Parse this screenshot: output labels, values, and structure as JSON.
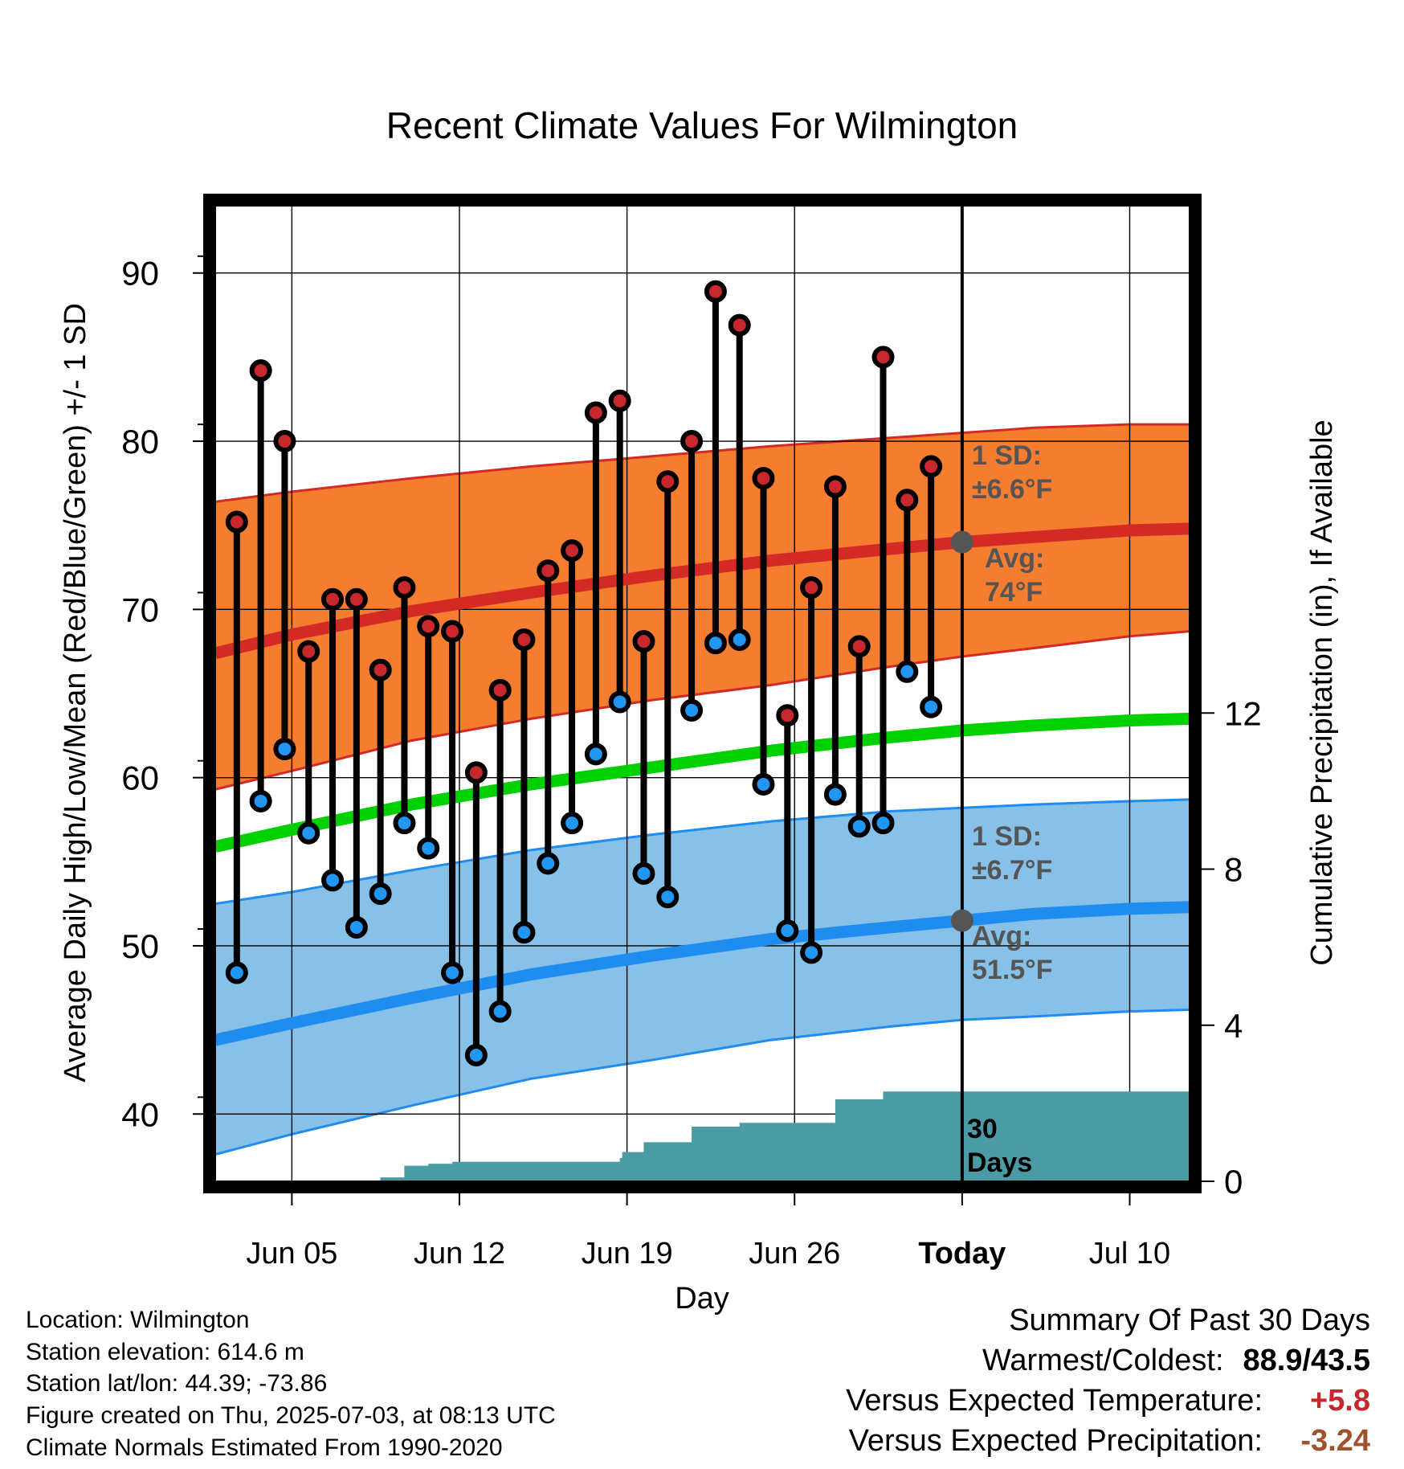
{
  "chart_data": {
    "type": "line",
    "title": "Recent Climate Values For Wilmington",
    "xlabel": "Day",
    "ylabel_left": "Average Daily High/Low/Mean (Red/Blue/Green) +/- 1 SD",
    "ylabel_right": "Cumulative Precipitation (in), If Available",
    "x_ticks": [
      {
        "label": "Jun 05",
        "day": 5
      },
      {
        "label": "Jun 12",
        "day": 12
      },
      {
        "label": "Jun 19",
        "day": 19
      },
      {
        "label": "Jun 26",
        "day": 26
      },
      {
        "label": "Today",
        "day": 33
      },
      {
        "label": "Jul 10",
        "day": 40
      }
    ],
    "xlim": [
      1.8,
      42.5
    ],
    "ylim_left": [
      36,
      94
    ],
    "y_ticks_left": [
      40,
      50,
      60,
      70,
      80,
      90
    ],
    "ylim_right": [
      0,
      25
    ],
    "y_ticks_right": [
      0,
      4,
      8,
      12
    ],
    "today_day": 33,
    "daily": [
      {
        "day": 2.7,
        "high": 75.2,
        "low": 48.4
      },
      {
        "day": 3.7,
        "high": 84.2,
        "low": 58.6
      },
      {
        "day": 4.7,
        "high": 80.0,
        "low": 61.7
      },
      {
        "day": 5.7,
        "high": 67.5,
        "low": 56.7
      },
      {
        "day": 6.7,
        "high": 70.6,
        "low": 53.9
      },
      {
        "day": 7.7,
        "high": 70.6,
        "low": 51.1
      },
      {
        "day": 8.7,
        "high": 66.4,
        "low": 53.1
      },
      {
        "day": 9.7,
        "high": 71.3,
        "low": 57.3
      },
      {
        "day": 10.7,
        "high": 69.0,
        "low": 55.8
      },
      {
        "day": 11.7,
        "high": 68.7,
        "low": 48.4
      },
      {
        "day": 12.7,
        "high": 60.3,
        "low": 43.5
      },
      {
        "day": 13.7,
        "high": 65.2,
        "low": 46.1
      },
      {
        "day": 14.7,
        "high": 68.2,
        "low": 50.8
      },
      {
        "day": 15.7,
        "high": 72.3,
        "low": 54.9
      },
      {
        "day": 16.7,
        "high": 73.5,
        "low": 57.3
      },
      {
        "day": 17.7,
        "high": 81.7,
        "low": 61.4
      },
      {
        "day": 18.7,
        "high": 82.4,
        "low": 64.5
      },
      {
        "day": 19.7,
        "high": 68.1,
        "low": 54.3
      },
      {
        "day": 20.7,
        "high": 77.6,
        "low": 52.9
      },
      {
        "day": 21.7,
        "high": 80.0,
        "low": 64.0
      },
      {
        "day": 22.7,
        "high": 88.9,
        "low": 68.0
      },
      {
        "day": 23.7,
        "high": 86.9,
        "low": 68.2
      },
      {
        "day": 24.7,
        "high": 77.8,
        "low": 59.6
      },
      {
        "day": 25.7,
        "high": 63.7,
        "low": 50.9
      },
      {
        "day": 26.7,
        "high": 71.3,
        "low": 49.6
      },
      {
        "day": 27.7,
        "high": 77.3,
        "low": 59.0
      },
      {
        "day": 28.7,
        "high": 67.8,
        "low": 57.1
      },
      {
        "day": 29.7,
        "high": 85.0,
        "low": 57.3
      },
      {
        "day": 30.7,
        "high": 76.5,
        "low": 66.3
      },
      {
        "day": 31.7,
        "high": 78.5,
        "low": 64.2
      }
    ],
    "normal_high": {
      "day": [
        1.8,
        5,
        10,
        15,
        20,
        25,
        30,
        33,
        36,
        40,
        42.5
      ],
      "avg": [
        67.4,
        68.5,
        69.9,
        71.0,
        72.0,
        72.9,
        73.6,
        74.0,
        74.3,
        74.7,
        74.8
      ],
      "upper": [
        76.4,
        77.0,
        77.8,
        78.5,
        79.1,
        79.7,
        80.2,
        80.5,
        80.8,
        81.0,
        81.0
      ],
      "lower": [
        59.3,
        60.4,
        62.2,
        63.5,
        64.6,
        65.5,
        66.6,
        67.2,
        67.7,
        68.4,
        68.7
      ]
    },
    "normal_mean": {
      "day": [
        1.8,
        5,
        10,
        15,
        20,
        25,
        30,
        33,
        36,
        40,
        42.5
      ],
      "avg": [
        55.9,
        56.9,
        58.4,
        59.6,
        60.6,
        61.6,
        62.4,
        62.8,
        63.1,
        63.4,
        63.5
      ]
    },
    "normal_low": {
      "day": [
        1.8,
        5,
        10,
        15,
        20,
        25,
        30,
        33,
        36,
        40,
        42.5
      ],
      "avg": [
        44.4,
        45.4,
        46.9,
        48.3,
        49.4,
        50.4,
        51.1,
        51.5,
        51.9,
        52.2,
        52.3
      ],
      "upper": [
        52.5,
        53.2,
        54.5,
        55.7,
        56.6,
        57.4,
        58.0,
        58.2,
        58.4,
        58.6,
        58.7
      ],
      "lower": [
        37.6,
        38.8,
        40.5,
        42.1,
        43.2,
        44.4,
        45.2,
        45.6,
        45.8,
        46.1,
        46.2
      ]
    },
    "precip_cumulative": {
      "day": [
        2.0,
        5.0,
        7.9,
        8.7,
        9.7,
        10.7,
        11.7,
        12.7,
        17.7,
        18.7,
        18.8,
        19.7,
        20.7,
        21.7,
        22.7,
        23.7,
        24.7,
        25.7,
        26.7,
        27.7,
        28.7,
        29.7,
        30.7,
        31.7,
        33.0,
        42.5
      ],
      "value": [
        0.0,
        0.0,
        0.0,
        0.1,
        0.4,
        0.45,
        0.5,
        0.5,
        0.5,
        0.6,
        0.75,
        1.0,
        1.0,
        1.4,
        1.4,
        1.5,
        1.5,
        1.5,
        1.5,
        2.1,
        2.1,
        2.3,
        2.3,
        2.3,
        2.3,
        2.3
      ]
    },
    "annotations": {
      "high_sd": [
        "1 SD:",
        "±6.6°F"
      ],
      "high_avg": [
        "Avg:",
        "74°F"
      ],
      "low_sd": [
        "1 SD:",
        "±6.7°F"
      ],
      "low_avg": [
        "Avg:",
        "51.5°F"
      ],
      "precip": [
        "30",
        "Days"
      ]
    }
  },
  "metadata": {
    "location": "Location: Wilmington",
    "elevation": "Station elevation: 614.6 m",
    "latlon": "Station lat/lon: 44.39; -73.86",
    "created": "Figure created on Thu, 2025-07-03, at 08:13 UTC",
    "normals": "Climate Normals Estimated From 1990-2020"
  },
  "summary": {
    "heading": "Summary Of Past 30 Days",
    "warm_cold_label": "Warmest/Coldest:",
    "warm_cold_value": "88.9/43.5",
    "temp_label": "Versus Expected Temperature:",
    "temp_value": "+5.8",
    "precip_label": "Versus Expected Precipitation:",
    "precip_value": "-3.24"
  },
  "colors": {
    "high_band": "#f47d30",
    "high_line": "#d42a25",
    "mean_line": "#00d000",
    "low_band": "#87c1e8",
    "low_line": "#1f8cf0",
    "precip_fill": "#4a9ba4",
    "high_marker": "#c8282d",
    "low_marker": "#2196f3",
    "annotation": "#555555"
  }
}
